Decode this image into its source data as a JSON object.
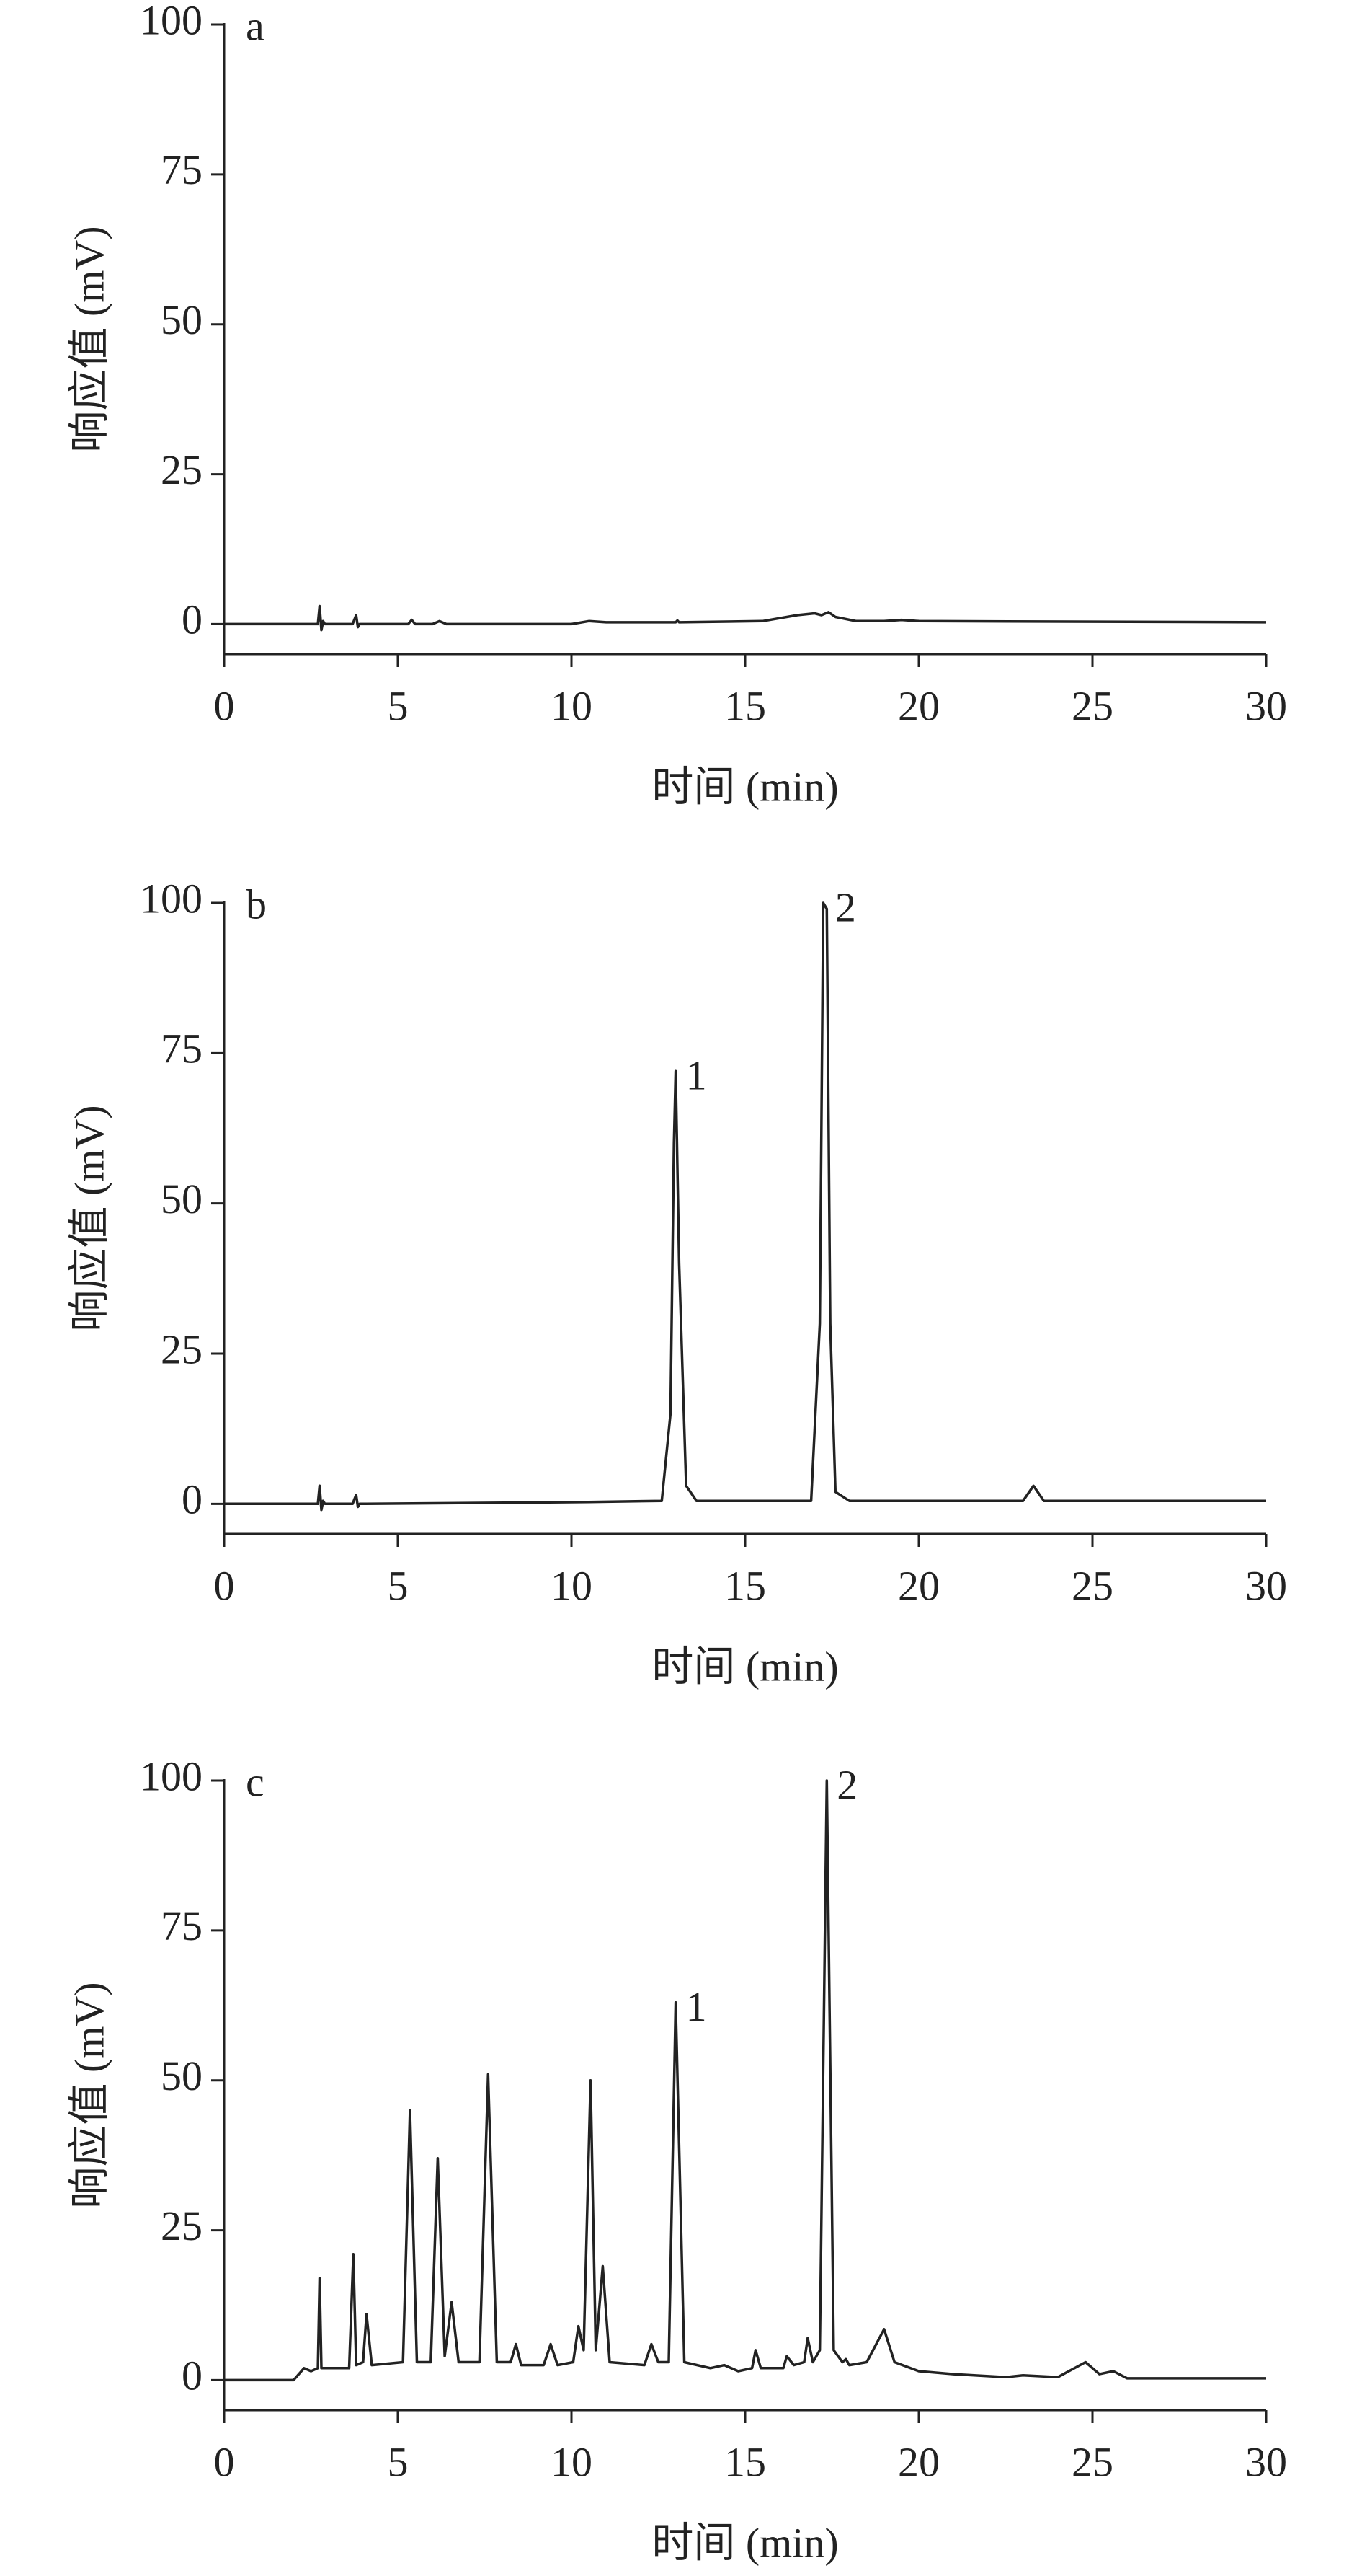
{
  "chart_data": [
    {
      "type": "line",
      "panel_label": "a",
      "xlabel": "时间 (min)",
      "ylabel": "响应值 (mV)",
      "color": "#222222",
      "xlim": [
        0,
        30
      ],
      "ylim": [
        -5,
        100
      ],
      "xticks": [
        0,
        5,
        10,
        15,
        20,
        25,
        30
      ],
      "yticks": [
        0,
        25,
        50,
        75,
        100
      ],
      "x": [
        0,
        2.7,
        2.75,
        2.8,
        2.85,
        2.9,
        3.7,
        3.8,
        3.85,
        3.9,
        5.3,
        5.4,
        5.5,
        6,
        6.2,
        6.4,
        10,
        10.5,
        11,
        13,
        13.05,
        13.1,
        15.5,
        16.5,
        17,
        17.2,
        17.4,
        17.6,
        18.2,
        19,
        19.5,
        20,
        30
      ],
      "values": [
        0,
        0,
        3,
        -1,
        0.5,
        0,
        0,
        1.5,
        -0.5,
        0,
        0,
        0.7,
        0,
        0,
        0.5,
        0,
        0,
        0.5,
        0.3,
        0.3,
        0.6,
        0.3,
        0.5,
        1.5,
        1.8,
        1.5,
        2.0,
        1.2,
        0.5,
        0.5,
        0.7,
        0.5,
        0.3
      ],
      "annotations": []
    },
    {
      "type": "line",
      "panel_label": "b",
      "xlabel": "时间 (min)",
      "ylabel": "响应值 (mV)",
      "color": "#222222",
      "xlim": [
        0,
        30
      ],
      "ylim": [
        -5,
        100
      ],
      "xticks": [
        0,
        5,
        10,
        15,
        20,
        25,
        30
      ],
      "yticks": [
        0,
        25,
        50,
        75,
        100
      ],
      "x": [
        0,
        2.7,
        2.75,
        2.8,
        2.85,
        2.9,
        3.7,
        3.8,
        3.85,
        3.9,
        10.5,
        12.6,
        12.85,
        12.95,
        13.0,
        13.1,
        13.3,
        13.6,
        16.9,
        17.15,
        17.25,
        17.35,
        17.45,
        17.6,
        18,
        23,
        23.3,
        23.6,
        30
      ],
      "values": [
        0,
        0,
        3,
        -1,
        0.5,
        0,
        0,
        1.5,
        -0.5,
        0,
        0.3,
        0.5,
        15,
        60,
        72,
        40,
        3,
        0.5,
        0.5,
        30,
        100,
        99,
        30,
        2,
        0.5,
        0.5,
        3,
        0.5,
        0.5
      ],
      "annotations": [
        {
          "text": "1",
          "x": 13.0,
          "y": 72
        },
        {
          "text": "2",
          "x": 17.3,
          "y": 100
        }
      ]
    },
    {
      "type": "line",
      "panel_label": "c",
      "xlabel": "时间 (min)",
      "ylabel": "响应值 (mV)",
      "color": "#222222",
      "xlim": [
        0,
        30
      ],
      "ylim": [
        -5,
        100
      ],
      "xticks": [
        0,
        5,
        10,
        15,
        20,
        25,
        30
      ],
      "yticks": [
        0,
        25,
        50,
        75,
        100
      ],
      "x": [
        0,
        2.0,
        2.3,
        2.5,
        2.7,
        2.75,
        2.8,
        3.6,
        3.72,
        3.8,
        4.0,
        4.1,
        4.25,
        5.15,
        5.35,
        5.55,
        5.95,
        6.15,
        6.35,
        6.55,
        6.75,
        7.35,
        7.6,
        7.85,
        8.25,
        8.4,
        8.55,
        9.2,
        9.4,
        9.6,
        10.05,
        10.2,
        10.35,
        10.55,
        10.7,
        10.9,
        11.1,
        12.1,
        12.3,
        12.5,
        12.8,
        13.0,
        13.25,
        14.0,
        14.4,
        14.8,
        15.2,
        15.3,
        15.45,
        16.1,
        16.2,
        16.4,
        16.7,
        16.8,
        16.95,
        17.15,
        17.35,
        17.55,
        17.8,
        17.9,
        18.0,
        18.5,
        19.0,
        19.3,
        20,
        21,
        22.5,
        23,
        24,
        24.8,
        25.2,
        25.6,
        26,
        30
      ],
      "values": [
        0,
        0,
        2,
        1.5,
        2,
        17,
        2,
        2,
        21,
        2.5,
        3,
        11,
        2.5,
        3,
        45,
        3,
        3,
        37,
        4,
        13,
        3,
        3,
        51,
        3,
        3,
        6,
        2.5,
        2.5,
        6,
        2.5,
        3,
        9,
        5,
        50,
        5,
        19,
        3,
        2.5,
        6,
        3,
        3,
        63,
        3,
        2,
        2.5,
        1.5,
        2,
        5,
        2,
        2,
        4,
        2.5,
        3,
        7,
        3,
        5,
        100,
        5,
        3,
        3.5,
        2.5,
        3,
        8.5,
        3,
        1.5,
        1,
        0.5,
        0.8,
        0.5,
        3,
        1,
        1.5,
        0.3,
        0.3
      ],
      "annotations": [
        {
          "text": "1",
          "x": 13.0,
          "y": 63
        },
        {
          "text": "2",
          "x": 17.35,
          "y": 100
        }
      ]
    }
  ]
}
